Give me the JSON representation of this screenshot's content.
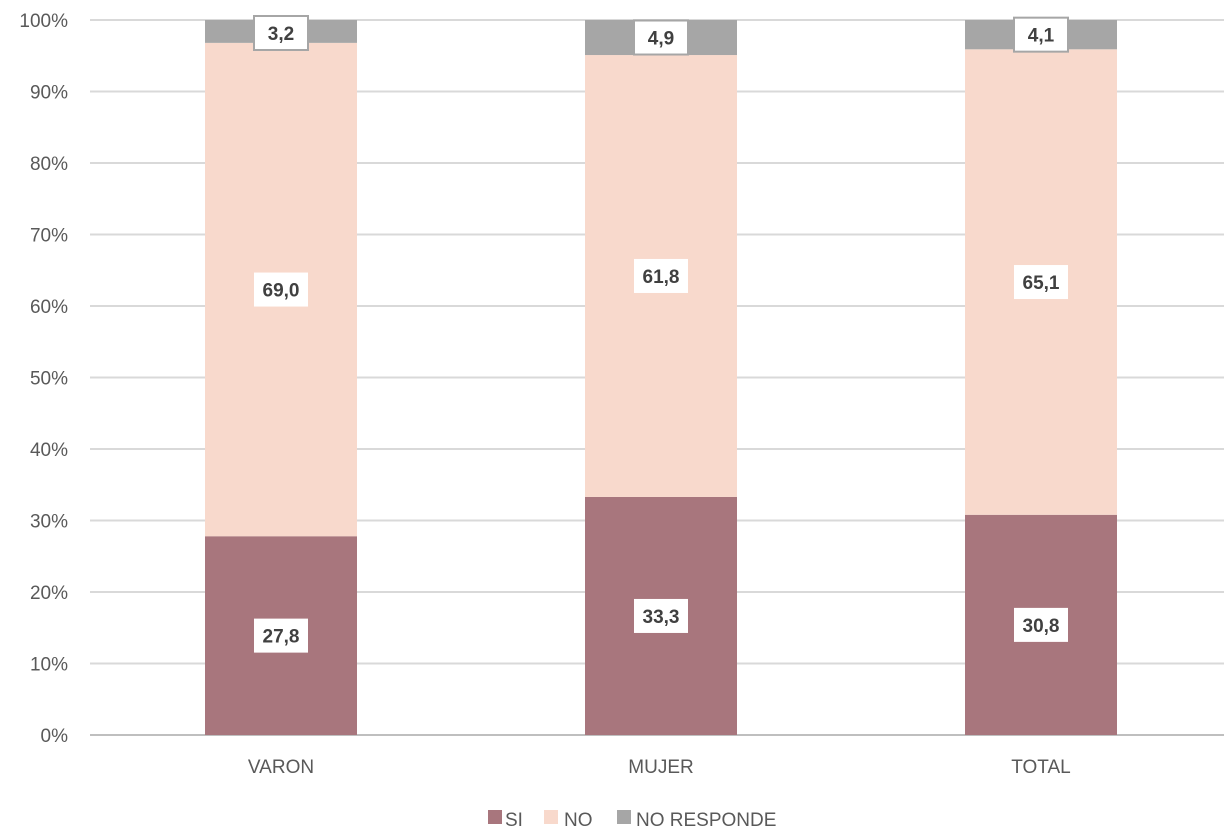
{
  "chart_data": {
    "type": "bar",
    "stacked": true,
    "percent_stacked": true,
    "categories": [
      "VARON",
      "MUJER",
      "TOTAL"
    ],
    "series": [
      {
        "name": "SI",
        "values": [
          27.8,
          33.3,
          30.8
        ],
        "labels": [
          "27,8",
          "33,3",
          "30,8"
        ],
        "color": "#a8767d"
      },
      {
        "name": "NO",
        "values": [
          69.0,
          61.8,
          65.1
        ],
        "labels": [
          "69,0",
          "61,8",
          "65,1"
        ],
        "color": "#f8d9cc"
      },
      {
        "name": "NO RESPONDE",
        "values": [
          3.2,
          4.9,
          4.1
        ],
        "labels": [
          "3,2",
          "4,9",
          "4,1"
        ],
        "color": "#a6a6a6"
      }
    ],
    "yticks": [
      "0%",
      "10%",
      "20%",
      "30%",
      "40%",
      "50%",
      "60%",
      "70%",
      "80%",
      "90%",
      "100%"
    ],
    "ylim": [
      0,
      100
    ],
    "grid": true,
    "legend": "bottom",
    "gridColor": "#d9d9d9",
    "axisColor": "#bfbfbf"
  }
}
